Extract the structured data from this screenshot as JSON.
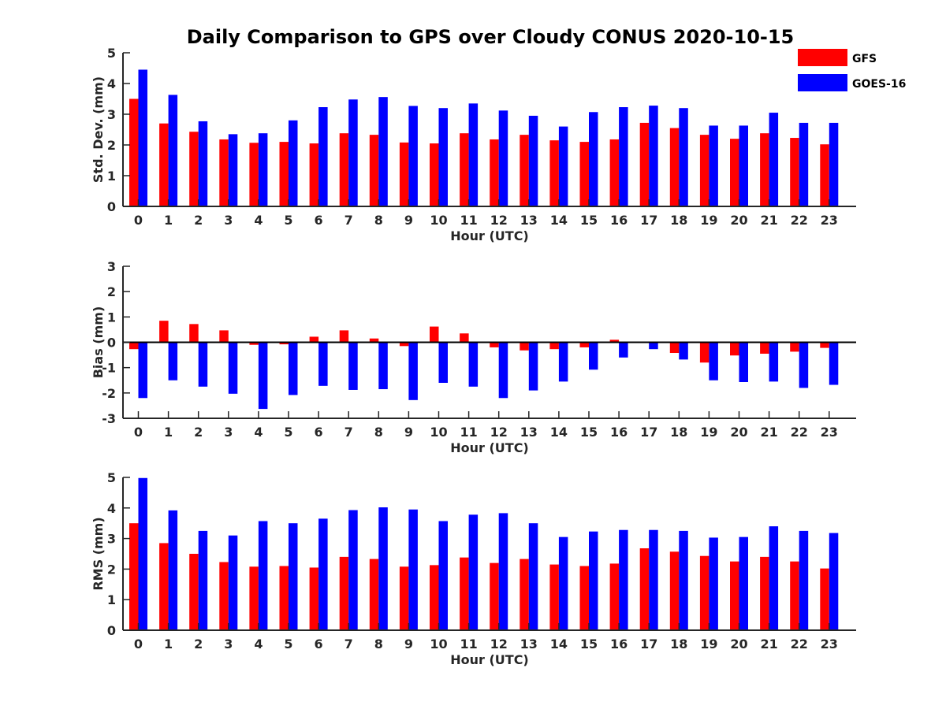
{
  "figure": {
    "title": "Daily Comparison to GPS over Cloudy CONUS 2020-10-15"
  },
  "legend": {
    "placement": "top-right",
    "entries": [
      {
        "name": "GFS",
        "color": "#ff0000"
      },
      {
        "name": "GOES-16",
        "color": "#0000ff"
      }
    ]
  },
  "chart_data": [
    {
      "type": "bar",
      "title": "",
      "xlabel": "Hour (UTC)",
      "ylabel": "Std. Dev. (mm)",
      "ylim": [
        0,
        5
      ],
      "yticks": [
        0,
        1,
        2,
        3,
        4,
        5
      ],
      "grid": false,
      "categories": [
        "0",
        "1",
        "2",
        "3",
        "4",
        "5",
        "6",
        "7",
        "8",
        "9",
        "10",
        "11",
        "12",
        "13",
        "14",
        "15",
        "16",
        "17",
        "18",
        "19",
        "20",
        "21",
        "22",
        "23"
      ],
      "series": [
        {
          "name": "GFS",
          "color": "#ff0000",
          "values": [
            3.5,
            2.7,
            2.43,
            2.18,
            2.07,
            2.1,
            2.05,
            2.38,
            2.33,
            2.08,
            2.05,
            2.38,
            2.18,
            2.33,
            2.15,
            2.1,
            2.18,
            2.72,
            2.55,
            2.33,
            2.2,
            2.38,
            2.23,
            2.02
          ]
        },
        {
          "name": "GOES-16",
          "color": "#0000ff",
          "values": [
            4.45,
            3.63,
            2.77,
            2.35,
            2.38,
            2.8,
            3.23,
            3.48,
            3.56,
            3.27,
            3.2,
            3.35,
            3.12,
            2.95,
            2.6,
            3.07,
            3.23,
            3.28,
            3.2,
            2.63,
            2.63,
            3.05,
            2.72,
            2.72
          ]
        }
      ]
    },
    {
      "type": "bar",
      "title": "",
      "xlabel": "Hour (UTC)",
      "ylabel": "Bias (mm)",
      "ylim": [
        -3,
        3
      ],
      "yticks": [
        -3,
        -2,
        -1,
        0,
        1,
        2,
        3
      ],
      "grid": false,
      "categories": [
        "0",
        "1",
        "2",
        "3",
        "4",
        "5",
        "6",
        "7",
        "8",
        "9",
        "10",
        "11",
        "12",
        "13",
        "14",
        "15",
        "16",
        "17",
        "18",
        "19",
        "20",
        "21",
        "22",
        "23"
      ],
      "series": [
        {
          "name": "GFS",
          "color": "#ff0000",
          "values": [
            -0.27,
            0.85,
            0.72,
            0.47,
            -0.1,
            -0.08,
            0.22,
            0.47,
            0.15,
            -0.15,
            0.62,
            0.35,
            -0.2,
            -0.32,
            -0.27,
            -0.2,
            0.1,
            0.02,
            -0.42,
            -0.8,
            -0.52,
            -0.45,
            -0.37,
            -0.22
          ]
        },
        {
          "name": "GOES-16",
          "color": "#0000ff",
          "values": [
            -2.2,
            -1.5,
            -1.75,
            -2.03,
            -2.63,
            -2.08,
            -1.72,
            -1.88,
            -1.85,
            -2.28,
            -1.6,
            -1.75,
            -2.2,
            -1.9,
            -1.55,
            -1.08,
            -0.6,
            -0.27,
            -0.68,
            -1.5,
            -1.57,
            -1.55,
            -1.8,
            -1.68
          ]
        }
      ]
    },
    {
      "type": "bar",
      "title": "",
      "xlabel": "Hour (UTC)",
      "ylabel": "RMS (mm)",
      "ylim": [
        0,
        5
      ],
      "yticks": [
        0,
        1,
        2,
        3,
        4,
        5
      ],
      "grid": false,
      "categories": [
        "0",
        "1",
        "2",
        "3",
        "4",
        "5",
        "6",
        "7",
        "8",
        "9",
        "10",
        "11",
        "12",
        "13",
        "14",
        "15",
        "16",
        "17",
        "18",
        "19",
        "20",
        "21",
        "22",
        "23"
      ],
      "series": [
        {
          "name": "GFS",
          "color": "#ff0000",
          "values": [
            3.5,
            2.85,
            2.5,
            2.23,
            2.08,
            2.1,
            2.05,
            2.4,
            2.33,
            2.08,
            2.13,
            2.38,
            2.2,
            2.33,
            2.15,
            2.1,
            2.18,
            2.68,
            2.57,
            2.43,
            2.25,
            2.4,
            2.25,
            2.02
          ]
        },
        {
          "name": "GOES-16",
          "color": "#0000ff",
          "values": [
            4.98,
            3.92,
            3.25,
            3.1,
            3.57,
            3.5,
            3.65,
            3.93,
            4.02,
            3.95,
            3.57,
            3.78,
            3.83,
            3.5,
            3.05,
            3.23,
            3.28,
            3.28,
            3.25,
            3.03,
            3.05,
            3.4,
            3.25,
            3.18
          ]
        }
      ]
    }
  ]
}
